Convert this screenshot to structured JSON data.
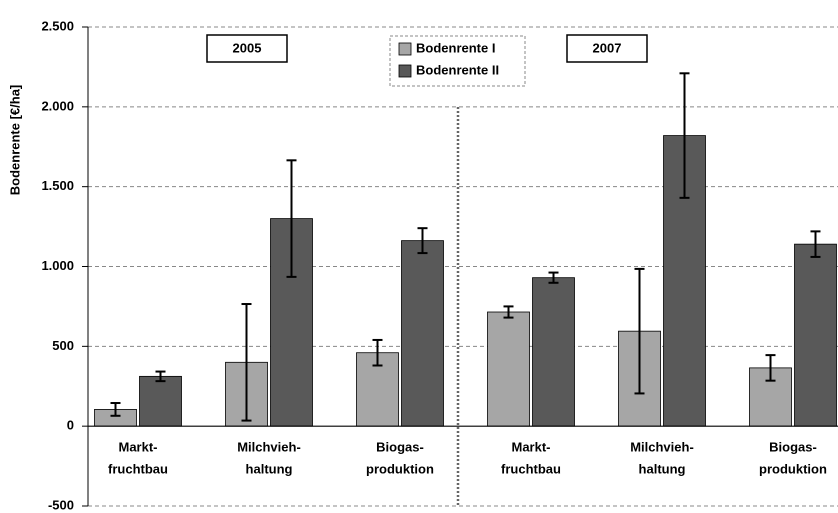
{
  "chart_data": {
    "type": "bar",
    "y_label": "Bodenrente [€/ha]",
    "annotations": [
      "2005",
      "2007"
    ],
    "categories": [
      [
        "Markt-",
        "fruchtbau"
      ],
      [
        "Milchvieh-",
        "haltung"
      ],
      [
        "Biogas-",
        "produktion"
      ],
      [
        "Markt-",
        "fruchtbau"
      ],
      [
        "Milchvieh-",
        "haltung"
      ],
      [
        "Biogas-",
        "produktion"
      ]
    ],
    "series": [
      {
        "name": "Bodenrente I",
        "color": "#a6a6a6",
        "values": [
          105,
          400,
          460,
          715,
          595,
          365
        ],
        "errors": [
          40,
          365,
          80,
          35,
          390,
          80
        ]
      },
      {
        "name": "Bodenrente II",
        "color": "#595959",
        "values": [
          312,
          1300,
          1162,
          930,
          1820,
          1140
        ],
        "errors": [
          30,
          365,
          78,
          32,
          390,
          80
        ]
      }
    ],
    "ylim": [
      -500,
      2500
    ],
    "yticks": [
      {
        "value": -500,
        "label": "-500"
      },
      0,
      500,
      {
        "value": 1000,
        "label": "1.000"
      },
      {
        "value": 1500,
        "label": "1.500"
      },
      {
        "value": 2000,
        "label": "2.000"
      },
      {
        "value": 2500,
        "label": "2.500"
      }
    ],
    "grid": true,
    "legend": "top"
  }
}
